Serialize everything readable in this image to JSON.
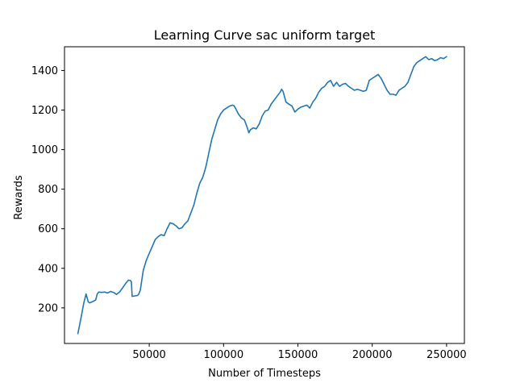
{
  "chart_data": {
    "type": "line",
    "title": "Learning Curve sac uniform target",
    "xlabel": "Number of Timesteps",
    "ylabel": "Rewards",
    "xlim": [
      -7000,
      262000
    ],
    "ylim": [
      20,
      1520
    ],
    "xticks": [
      {
        "value": 50000,
        "label": "50000"
      },
      {
        "value": 100000,
        "label": "100000"
      },
      {
        "value": 150000,
        "label": "150000"
      },
      {
        "value": 200000,
        "label": "200000"
      },
      {
        "value": 250000,
        "label": "250000"
      }
    ],
    "yticks": [
      {
        "value": 200,
        "label": "200"
      },
      {
        "value": 400,
        "label": "400"
      },
      {
        "value": 600,
        "label": "600"
      },
      {
        "value": 800,
        "label": "800"
      },
      {
        "value": 1000,
        "label": "1000"
      },
      {
        "value": 1200,
        "label": "1200"
      },
      {
        "value": 1400,
        "label": "1400"
      }
    ],
    "grid": false,
    "legend": "none",
    "colors": {
      "series": "#1f77b4"
    },
    "series": [
      {
        "x": [
          2000,
          4000,
          6000,
          7500,
          9000,
          10000,
          12000,
          14000,
          15000,
          16000,
          18000,
          20000,
          22000,
          24000,
          26000,
          28000,
          30000,
          32000,
          34000,
          36000,
          37500,
          38000,
          38500,
          40000,
          42000,
          43000,
          44000,
          46000,
          48000,
          50000,
          52000,
          54000,
          56000,
          58000,
          60000,
          62000,
          64000,
          66000,
          68000,
          70000,
          72000,
          74000,
          76000,
          78000,
          80000,
          82000,
          84000,
          86000,
          88000,
          90000,
          92000,
          94000,
          96000,
          98000,
          100000,
          102000,
          104000,
          106000,
          107000,
          108000,
          110000,
          112000,
          114000,
          116000,
          117000,
          118000,
          120000,
          122000,
          124000,
          126000,
          128000,
          130000,
          132000,
          134000,
          136000,
          138000,
          139000,
          140000,
          142000,
          144000,
          146000,
          148000,
          150000,
          152000,
          154000,
          156000,
          158000,
          160000,
          162000,
          164000,
          166000,
          168000,
          170000,
          172000,
          174000,
          176000,
          178000,
          180000,
          182000,
          184000,
          186000,
          188000,
          190000,
          192000,
          194000,
          196000,
          198000,
          200000,
          202000,
          204000,
          206000,
          208000,
          210000,
          212000,
          214000,
          216000,
          218000,
          220000,
          222000,
          224000,
          226000,
          228000,
          230000,
          232000,
          234000,
          236000,
          238000,
          240000,
          242000,
          244000,
          246000,
          248000,
          250000
        ],
        "y": [
          70,
          145,
          225,
          270,
          230,
          225,
          232,
          240,
          270,
          280,
          278,
          280,
          275,
          283,
          278,
          268,
          280,
          300,
          322,
          340,
          338,
          330,
          258,
          260,
          262,
          270,
          290,
          390,
          440,
          475,
          510,
          545,
          560,
          570,
          565,
          600,
          630,
          625,
          615,
          600,
          605,
          625,
          640,
          680,
          720,
          780,
          830,
          860,
          910,
          980,
          1050,
          1100,
          1150,
          1180,
          1200,
          1210,
          1220,
          1225,
          1222,
          1210,
          1180,
          1160,
          1150,
          1110,
          1085,
          1100,
          1110,
          1105,
          1130,
          1170,
          1195,
          1200,
          1230,
          1250,
          1270,
          1290,
          1305,
          1295,
          1240,
          1230,
          1220,
          1190,
          1205,
          1215,
          1220,
          1225,
          1210,
          1240,
          1260,
          1290,
          1310,
          1320,
          1340,
          1350,
          1320,
          1340,
          1320,
          1330,
          1335,
          1320,
          1310,
          1300,
          1305,
          1300,
          1295,
          1300,
          1350,
          1360,
          1370,
          1380,
          1360,
          1330,
          1300,
          1280,
          1280,
          1275,
          1300,
          1310,
          1320,
          1340,
          1380,
          1420,
          1440,
          1450,
          1460,
          1470,
          1455,
          1460,
          1450,
          1455,
          1465,
          1460,
          1470
        ]
      }
    ]
  }
}
